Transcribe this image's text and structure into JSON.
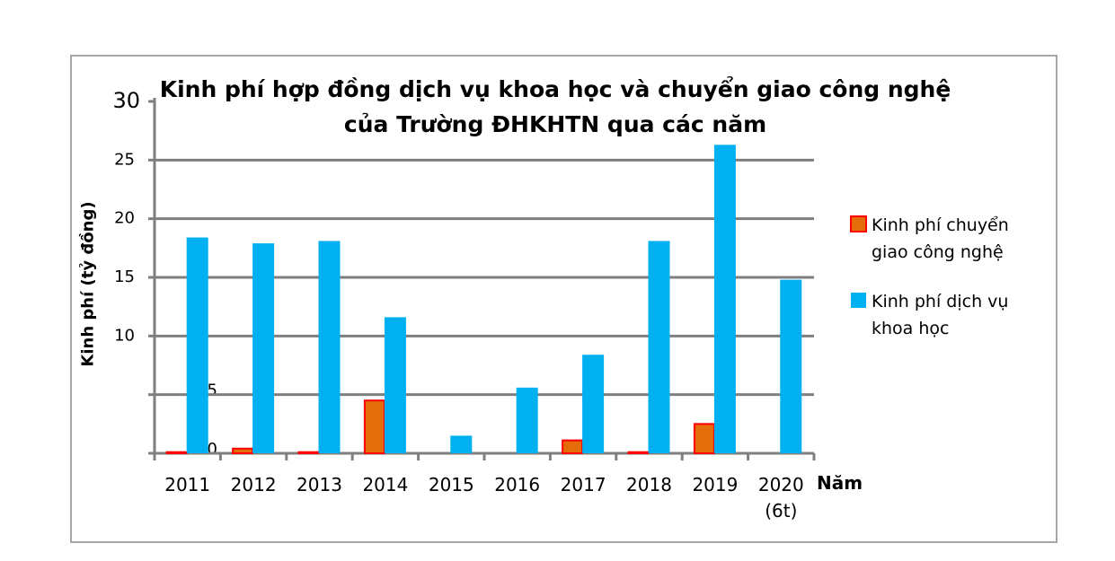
{
  "chart_data": {
    "type": "bar",
    "title": "Kinh phí hợp đồng dịch vụ khoa học và chuyển giao công nghệ\ncủa Trường ĐHKHTN qua các năm",
    "y_label": "Kinh phí (tỷ đồng)",
    "x_label": "Năm",
    "categories": [
      "2011",
      "2012",
      "2013",
      "2014",
      "2015",
      "2016",
      "2017",
      "2018",
      "2019",
      "2020\n(6t)"
    ],
    "series": [
      {
        "name": "Kinh phí chuyển giao công nghệ",
        "color": "#e46c0a",
        "values": [
          0.1,
          0.4,
          0.1,
          4.5,
          0,
          0,
          1.1,
          0.1,
          2.5,
          0
        ]
      },
      {
        "name": "Kinh phí dịch vụ khoa học",
        "color": "#00b0f0",
        "values": [
          18.4,
          17.9,
          18.1,
          11.6,
          1.5,
          5.6,
          8.4,
          18.1,
          26.3,
          14.8
        ]
      }
    ],
    "ylim": [
      0,
      30
    ],
    "yticks": [
      0,
      5,
      10,
      15,
      20,
      25,
      30
    ],
    "grid": true
  }
}
